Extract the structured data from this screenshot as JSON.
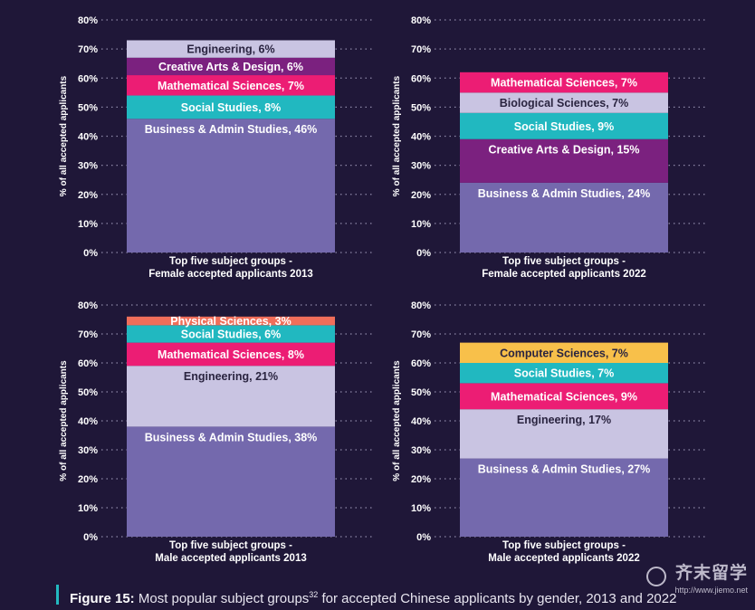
{
  "chart_data": [
    {
      "type": "bar",
      "stacked": true,
      "title": "Top five subject groups - Female accepted applicants 2013",
      "ylabel": "% of all accepted applicants",
      "ylim": [
        0,
        80
      ],
      "yticks": [
        "0%",
        "10%",
        "20%",
        "30%",
        "40%",
        "50%",
        "60%",
        "70%",
        "80%"
      ],
      "grid": true,
      "series": [
        {
          "name": "Business & Admin Studies",
          "value": 46,
          "label": "Business & Admin Studies, 46%",
          "color": "#7469ad"
        },
        {
          "name": "Social Studies",
          "value": 8,
          "label": "Social Studies, 8%",
          "color": "#21b8c0"
        },
        {
          "name": "Mathematical Sciences",
          "value": 7,
          "label": "Mathematical Sciences, 7%",
          "color": "#ec1d74"
        },
        {
          "name": "Creative Arts & Design",
          "value": 6,
          "label": "Creative Arts & Design, 6%",
          "color": "#7b217f"
        },
        {
          "name": "Engineering",
          "value": 6,
          "label": "Engineering, 6%",
          "color": "#c9c4e2"
        }
      ]
    },
    {
      "type": "bar",
      "stacked": true,
      "title": "Top five subject groups - Female accepted applicants 2022",
      "ylabel": "% of all accepted applicants",
      "ylim": [
        0,
        80
      ],
      "yticks": [
        "0%",
        "10%",
        "20%",
        "30%",
        "40%",
        "50%",
        "60%",
        "70%",
        "80%"
      ],
      "grid": true,
      "series": [
        {
          "name": "Business & Admin Studies",
          "value": 24,
          "label": "Business & Admin Studies, 24%",
          "color": "#7469ad"
        },
        {
          "name": "Creative Arts & Design",
          "value": 15,
          "label": "Creative Arts & Design, 15%",
          "color": "#7b217f"
        },
        {
          "name": "Social Studies",
          "value": 9,
          "label": "Social Studies, 9%",
          "color": "#21b8c0"
        },
        {
          "name": "Biological Sciences",
          "value": 7,
          "label": "Biological Sciences, 7%",
          "color": "#c9c4e2"
        },
        {
          "name": "Mathematical Sciences",
          "value": 7,
          "label": "Mathematical Sciences, 7%",
          "color": "#ec1d74"
        }
      ]
    },
    {
      "type": "bar",
      "stacked": true,
      "title": "Top five subject groups - Male accepted applicants 2013",
      "ylabel": "% of all accepted applicants",
      "ylim": [
        0,
        80
      ],
      "yticks": [
        "0%",
        "10%",
        "20%",
        "30%",
        "40%",
        "50%",
        "60%",
        "70%",
        "80%"
      ],
      "grid": true,
      "series": [
        {
          "name": "Business & Admin Studies",
          "value": 38,
          "label": "Business & Admin Studies, 38%",
          "color": "#7469ad"
        },
        {
          "name": "Engineering",
          "value": 21,
          "label": "Engineering, 21%",
          "color": "#c9c4e2"
        },
        {
          "name": "Mathematical Sciences",
          "value": 8,
          "label": "Mathematical Sciences, 8%",
          "color": "#ec1d74"
        },
        {
          "name": "Social Studies",
          "value": 6,
          "label": "Social Studies, 6%",
          "color": "#21b8c0"
        },
        {
          "name": "Physical Sciences",
          "value": 3,
          "label": "Physical Sciences, 3%",
          "color": "#f06e5a"
        }
      ]
    },
    {
      "type": "bar",
      "stacked": true,
      "title": "Top five subject groups - Male accepted applicants 2022",
      "ylabel": "% of all accepted applicants",
      "ylim": [
        0,
        80
      ],
      "yticks": [
        "0%",
        "10%",
        "20%",
        "30%",
        "40%",
        "50%",
        "60%",
        "70%",
        "80%"
      ],
      "grid": true,
      "series": [
        {
          "name": "Business & Admin Studies",
          "value": 27,
          "label": "Business & Admin Studies, 27%",
          "color": "#7469ad"
        },
        {
          "name": "Engineering",
          "value": 17,
          "label": "Engineering, 17%",
          "color": "#c9c4e2"
        },
        {
          "name": "Mathematical Sciences",
          "value": 9,
          "label": "Mathematical Sciences, 9%",
          "color": "#ec1d74"
        },
        {
          "name": "Social Studies",
          "value": 7,
          "label": "Social Studies, 7%",
          "color": "#21b8c0"
        },
        {
          "name": "Computer Sciences",
          "value": 7,
          "label": "Computer Sciences, 7%",
          "color": "#f8c04a"
        }
      ]
    }
  ],
  "caption": {
    "label": "Figure 15:",
    "text_before": "Most popular subject groups",
    "superscript": "32",
    "text_after": "for accepted Chinese applicants by gender, 2013 and 2022"
  },
  "watermark": {
    "logo": "齐末留学",
    "url": "http://www.jiemo.net"
  },
  "colors": {
    "background": "#1f1738",
    "grid": "#8e88a8",
    "caption_accent": "#23b9c0"
  }
}
